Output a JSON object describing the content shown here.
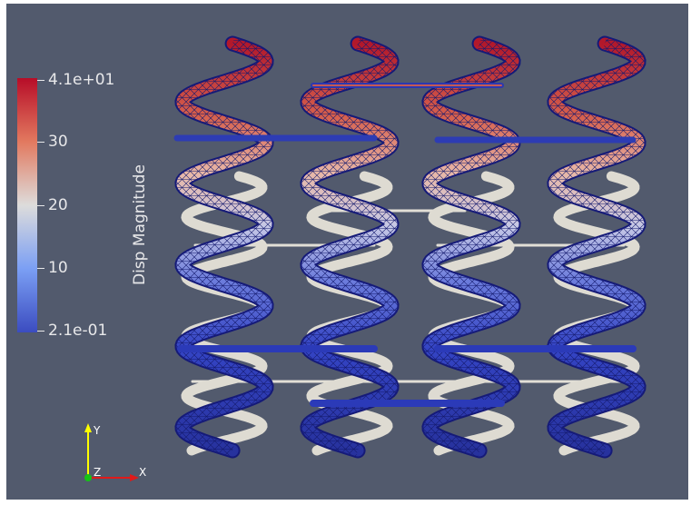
{
  "colorbar": {
    "title": "Disp Magnitude",
    "labels": {
      "max": "4.1e+01",
      "t30": "30",
      "t20": "20",
      "t10": "10",
      "min": "2.1e-01"
    },
    "colors": [
      "#b70d28",
      "#e2795f",
      "#dddcdb",
      "#7b9ff4",
      "#3b4cc0"
    ]
  },
  "axes": {
    "x": "X",
    "y": "Y",
    "z": "Z"
  },
  "scene": {
    "description_icon": "deformed-springs-mesh",
    "background": "#525a6d",
    "undeformed_color": "#e7e4dc",
    "mesh_edge_color": "#14197a"
  }
}
